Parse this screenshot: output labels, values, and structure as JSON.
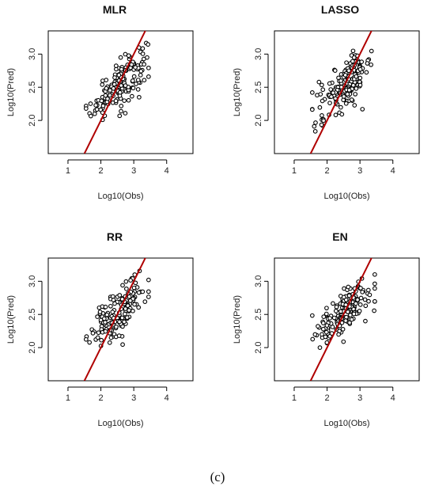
{
  "caption": "(c)",
  "colors": {
    "line": "#b00000",
    "points": "#000000"
  },
  "chart_data": [
    {
      "type": "scatter",
      "title": "MLR",
      "xlabel": "Log10(Obs)",
      "ylabel": "Log10(Pred)",
      "xlim": [
        0.4,
        4.8
      ],
      "ylim": [
        1.5,
        3.35
      ],
      "xticks": [
        "1",
        "2",
        "3",
        "4"
      ],
      "yticks": [
        "2.0",
        "2.5",
        "3.0"
      ],
      "line": {
        "x": [
          1.5,
          3.5
        ],
        "y": [
          1.5,
          3.5
        ]
      }
    },
    {
      "type": "scatter",
      "title": "LASSO",
      "xlabel": "Log10(Obs)",
      "ylabel": "Log10(Pred)",
      "xlim": [
        0.4,
        4.8
      ],
      "ylim": [
        1.5,
        3.35
      ],
      "xticks": [
        "1",
        "2",
        "3",
        "4"
      ],
      "yticks": [
        "2.0",
        "2.5",
        "3.0"
      ],
      "line": {
        "x": [
          1.5,
          3.5
        ],
        "y": [
          1.5,
          3.5
        ]
      }
    },
    {
      "type": "scatter",
      "title": "RR",
      "xlabel": "Log10(Obs)",
      "ylabel": "Log10(Pred)",
      "xlim": [
        0.4,
        4.8
      ],
      "ylim": [
        1.5,
        3.35
      ],
      "xticks": [
        "1",
        "2",
        "3",
        "4"
      ],
      "yticks": [
        "2.0",
        "2.5",
        "3.0"
      ],
      "line": {
        "x": [
          1.5,
          3.5
        ],
        "y": [
          1.5,
          3.5
        ]
      }
    },
    {
      "type": "scatter",
      "title": "EN",
      "xlabel": "Log10(Obs)",
      "ylabel": "Log10(Pred)",
      "xlim": [
        0.4,
        4.8
      ],
      "ylim": [
        1.5,
        3.35
      ],
      "xticks": [
        "1",
        "2",
        "3",
        "4"
      ],
      "yticks": [
        "2.0",
        "2.5",
        "3.0"
      ],
      "line": {
        "x": [
          1.5,
          3.5
        ],
        "y": [
          1.5,
          3.5
        ]
      }
    }
  ]
}
